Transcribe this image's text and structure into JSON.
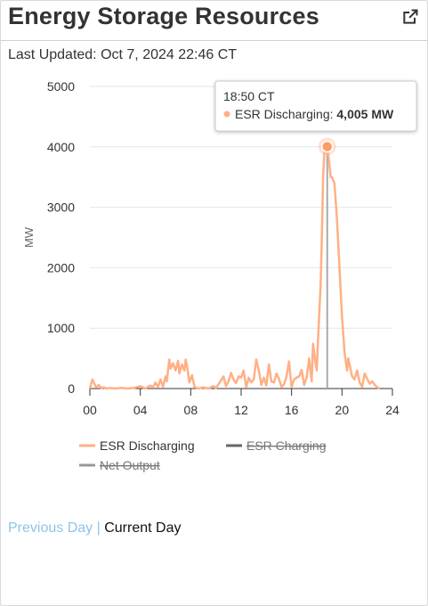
{
  "header": {
    "title": "Energy Storage Resources",
    "external_icon": "external-link-icon"
  },
  "last_updated": "Last Updated: Oct 7, 2024 22:46 CT",
  "nav": {
    "previous": "Previous Day",
    "separator": "|",
    "current": "Current Day"
  },
  "colors": {
    "esr": "#ffb085",
    "esr_dot": "#ff9c66",
    "charging": "#666666",
    "net": "#999999"
  },
  "chart_data": {
    "type": "line",
    "xlabel": "",
    "ylabel": "MW",
    "xlim": [
      0,
      24
    ],
    "ylim": [
      0,
      5000
    ],
    "x_ticks": [
      0,
      4,
      8,
      12,
      16,
      20,
      24
    ],
    "x_tick_labels": [
      "00",
      "04",
      "08",
      "12",
      "16",
      "20",
      "24"
    ],
    "y_ticks": [
      0,
      1000,
      2000,
      3000,
      4000,
      5000
    ],
    "y_tick_labels": [
      "0",
      "1000",
      "2000",
      "3000",
      "4000",
      "5000"
    ],
    "grid": true,
    "legend_position": "bottom",
    "series": [
      {
        "name": "ESR Discharging",
        "visible": true,
        "x": [
          0.0,
          0.2,
          0.35,
          0.5,
          0.7,
          0.9,
          1.1,
          1.3,
          1.6,
          2.0,
          2.5,
          3.0,
          3.5,
          4.0,
          4.4,
          4.8,
          5.0,
          5.2,
          5.4,
          5.6,
          5.8,
          6.0,
          6.1,
          6.3,
          6.4,
          6.6,
          6.8,
          7.0,
          7.1,
          7.3,
          7.5,
          7.6,
          7.7,
          7.9,
          8.1,
          8.3,
          8.6,
          9.0,
          9.4,
          9.8,
          10.0,
          10.3,
          10.6,
          10.8,
          11.0,
          11.2,
          11.4,
          11.6,
          11.8,
          12.0,
          12.2,
          12.4,
          12.6,
          12.8,
          13.0,
          13.2,
          13.4,
          13.6,
          13.8,
          14.0,
          14.2,
          14.4,
          14.6,
          14.8,
          15.0,
          15.2,
          15.4,
          15.6,
          15.8,
          16.0,
          16.2,
          16.4,
          16.6,
          16.8,
          17.0,
          17.2,
          17.4,
          17.6,
          17.7,
          17.9,
          18.0,
          18.1,
          18.3,
          18.4,
          18.5,
          18.6,
          18.7,
          18.83,
          18.95,
          19.1,
          19.2,
          19.4,
          19.5,
          19.6,
          19.8,
          20.0,
          20.2,
          20.4,
          20.5,
          20.6,
          20.8,
          21.0,
          21.2,
          21.4,
          21.6,
          21.8,
          22.0,
          22.2,
          22.4,
          22.6,
          22.8,
          23.0
        ],
        "y": [
          0,
          150,
          80,
          20,
          60,
          10,
          20,
          0,
          10,
          0,
          10,
          0,
          10,
          40,
          0,
          50,
          20,
          100,
          20,
          150,
          30,
          200,
          120,
          480,
          330,
          420,
          300,
          460,
          250,
          400,
          300,
          480,
          380,
          100,
          220,
          30,
          0,
          20,
          0,
          40,
          10,
          100,
          200,
          40,
          120,
          260,
          150,
          90,
          200,
          180,
          300,
          20,
          180,
          100,
          150,
          480,
          300,
          60,
          180,
          50,
          400,
          120,
          100,
          250,
          160,
          30,
          70,
          200,
          450,
          20,
          150,
          180,
          200,
          310,
          60,
          190,
          500,
          120,
          740,
          420,
          300,
          800,
          1700,
          2500,
          3500,
          3900,
          4005,
          4005,
          3800,
          3500,
          3500,
          3400,
          3100,
          2800,
          2000,
          1200,
          600,
          300,
          500,
          400,
          200,
          150,
          300,
          100,
          30,
          250,
          160,
          80,
          120,
          60,
          20,
          0
        ],
        "tooltip": {
          "time": "18:50 CT",
          "label": "ESR Discharging:",
          "value": "4,005 MW",
          "x": 18.83,
          "y": 4005
        }
      },
      {
        "name": "ESR Charging",
        "visible": false,
        "x": [],
        "y": []
      },
      {
        "name": "Net Output",
        "visible": false,
        "x": [],
        "y": []
      }
    ]
  }
}
